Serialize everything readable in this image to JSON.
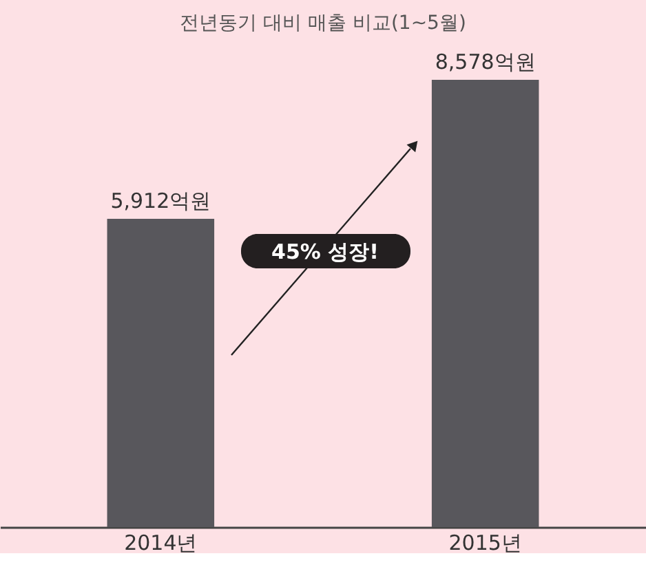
{
  "chart_data": {
    "type": "bar",
    "title": "전년동기 대비 매출 비교(1~5월)",
    "categories": [
      "2014년",
      "2015년"
    ],
    "values": [
      5912,
      8578
    ],
    "value_labels": [
      "5,912억원",
      "8,578억원"
    ],
    "color": "#58575c",
    "tick_labels": "x",
    "annotations": [
      "45% 성장!"
    ]
  }
}
